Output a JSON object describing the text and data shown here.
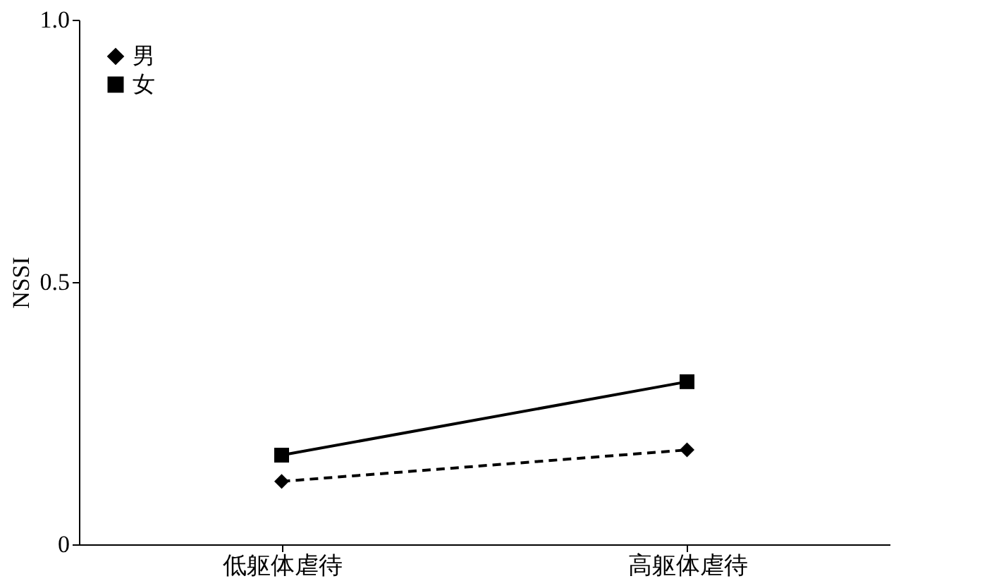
{
  "chart_data": {
    "type": "line",
    "ylabel": "NSSI",
    "categories": [
      "低躯体虐待",
      "高躯体虐待"
    ],
    "series": [
      {
        "name": "男",
        "color": "#000000",
        "values": [
          0.12,
          0.18
        ],
        "marker": "diamond",
        "line_style": "dashed"
      },
      {
        "name": "女",
        "color": "#000000",
        "values": [
          0.17,
          0.31
        ],
        "marker": "square",
        "line_style": "solid"
      }
    ],
    "ylim": [
      0,
      1
    ],
    "yticks": [
      0,
      0.5,
      {
        "value": 1,
        "label": "1.0"
      }
    ],
    "grid": false,
    "legend": "top left"
  }
}
